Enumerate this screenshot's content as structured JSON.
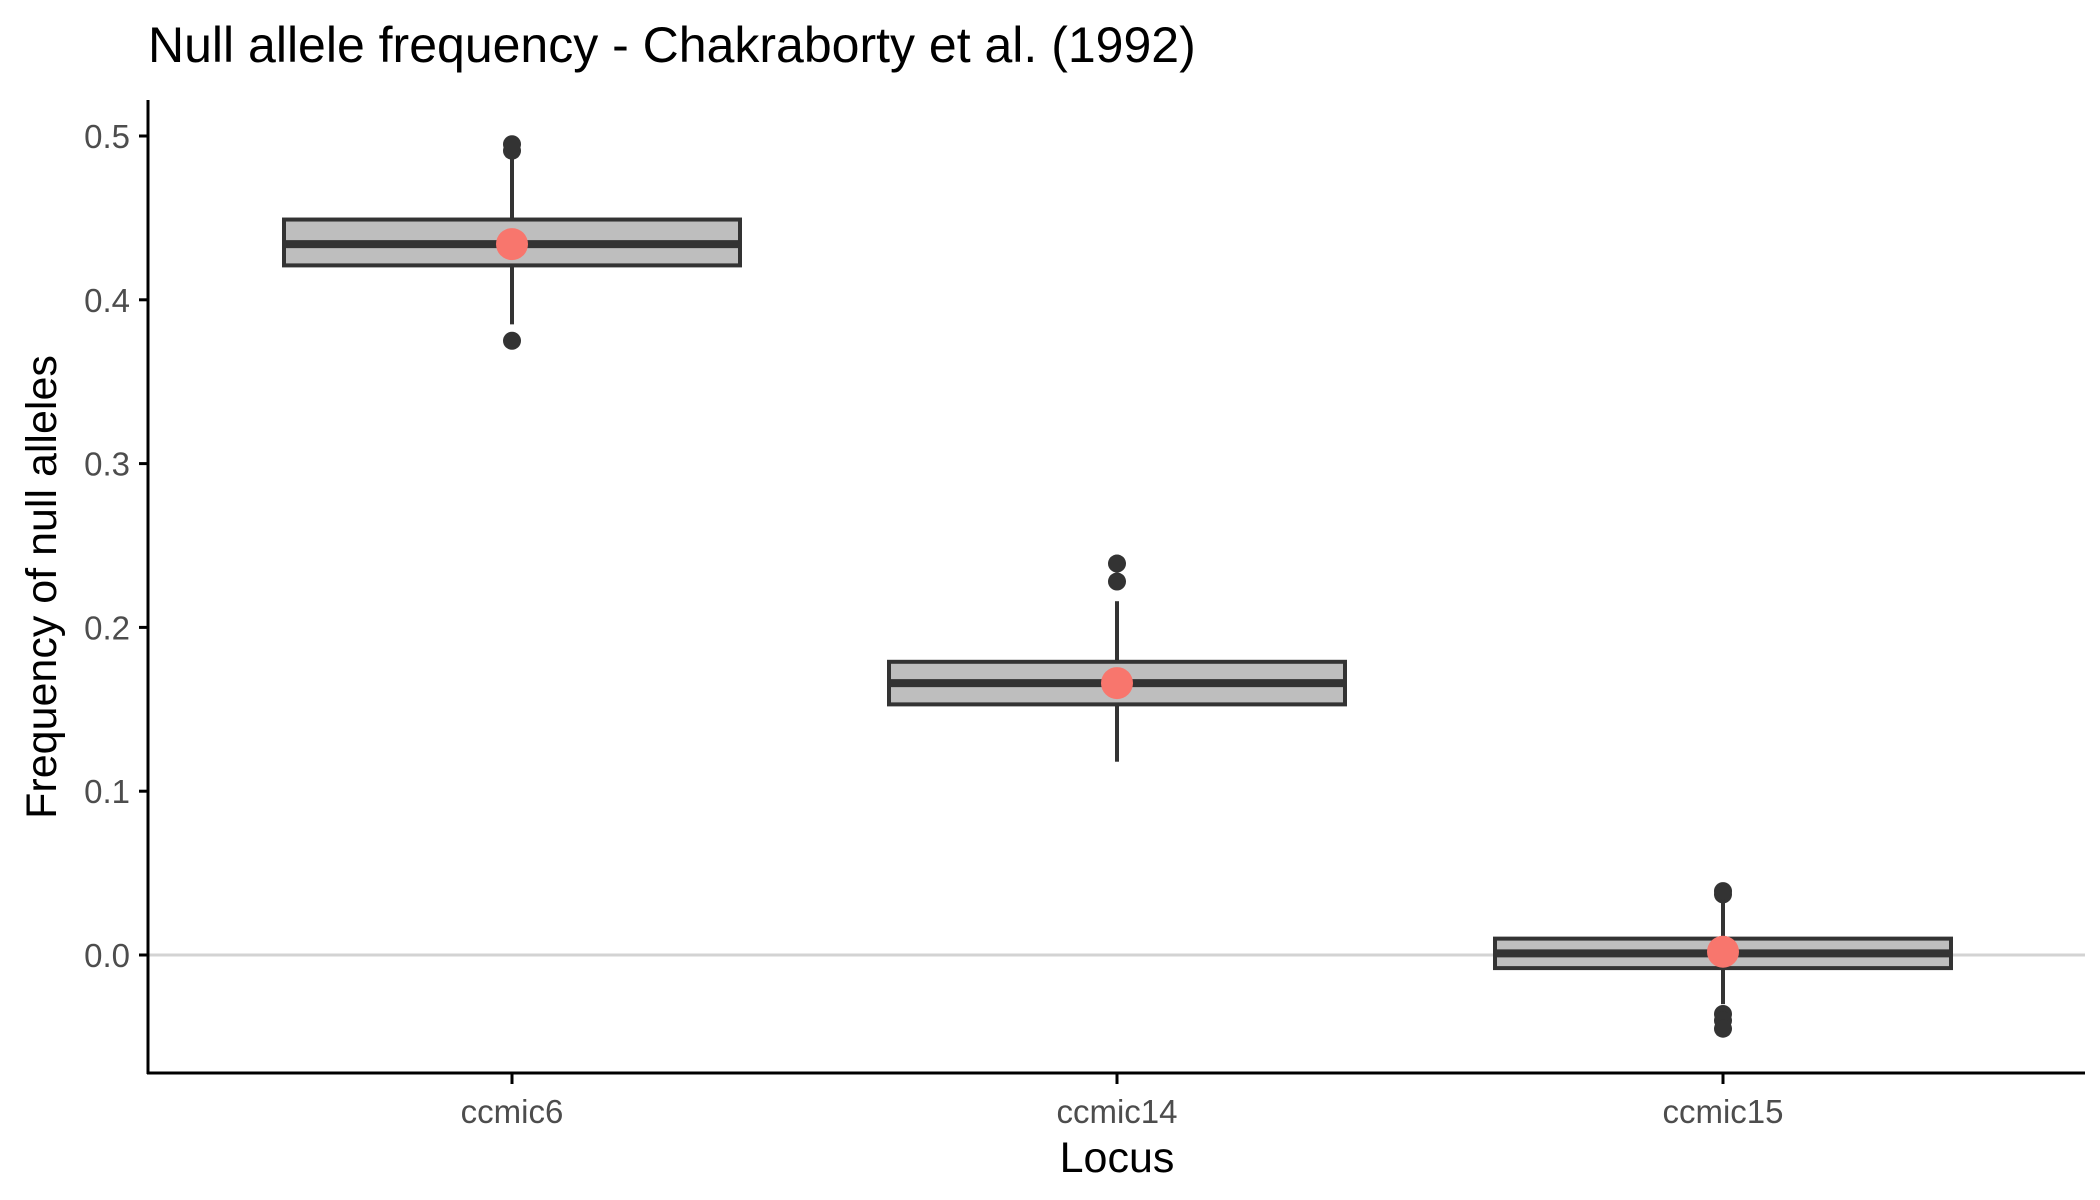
{
  "chart_data": {
    "type": "boxplot",
    "title": "Null allele frequency - Chakraborty et al. (1992)",
    "xlabel": "Locus",
    "ylabel": "Frequency of null alleles",
    "ylim": [
      -0.07,
      0.52
    ],
    "yticks": [
      0.0,
      0.1,
      0.2,
      0.3,
      0.4,
      0.5
    ],
    "ytick_labels": [
      "0.0",
      "0.1",
      "0.2",
      "0.3",
      "0.4",
      "0.5"
    ],
    "reference_line_y": 0.0,
    "grid": false,
    "legend": "none",
    "categories": [
      "ccmic6",
      "ccmic14",
      "ccmic15"
    ],
    "boxes": [
      {
        "category": "ccmic6",
        "q1": 0.421,
        "median": 0.434,
        "q3": 0.449,
        "whisker_low": 0.385,
        "whisker_high": 0.489,
        "outliers": [
          0.375,
          0.491,
          0.495
        ],
        "mean": 0.434
      },
      {
        "category": "ccmic14",
        "q1": 0.153,
        "median": 0.166,
        "q3": 0.179,
        "whisker_low": 0.118,
        "whisker_high": 0.216,
        "outliers": [
          0.228,
          0.239
        ],
        "mean": 0.166
      },
      {
        "category": "ccmic15",
        "q1": -0.008,
        "median": 0.001,
        "q3": 0.01,
        "whisker_low": -0.03,
        "whisker_high": 0.032,
        "outliers": [
          0.037,
          0.039,
          -0.036,
          -0.04,
          -0.045
        ],
        "mean": 0.002
      }
    ],
    "colors": {
      "box_fill": "#bebebe",
      "box_stroke": "#333333",
      "point": "#333333",
      "mean_point": "#f8766d",
      "reference_line": "#d3d3d3",
      "axis": "#000000",
      "tick_label": "#4d4d4d"
    }
  }
}
